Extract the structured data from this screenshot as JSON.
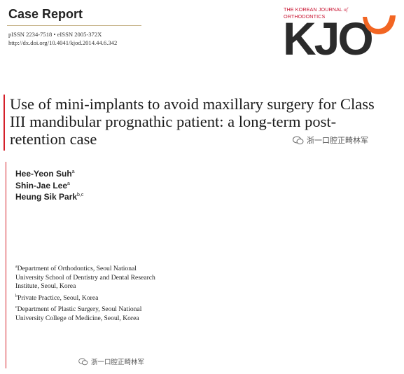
{
  "header": {
    "section_label": "Case Report",
    "issn": "pISSN 2234-7518 • eISSN 2005-372X",
    "doi": "http://dx.doi.org/10.4041/kjod.2014.44.6.342"
  },
  "journal": {
    "name_line1": "THE KOREAN JOURNAL",
    "name_of": "of",
    "name_line2": "ORTHODONTICS",
    "logo_text": "KJO",
    "logo_icon": "smile-swoosh-icon",
    "brand_color": "#c8102e",
    "accent_color": "#f26522"
  },
  "article": {
    "title": "Use of mini-implants to avoid maxillary surgery for Class III mandibular prognathic patient: a long-term post-retention case"
  },
  "authors": [
    {
      "name": "Hee-Yeon Suh",
      "sup": "a"
    },
    {
      "name": "Shin-Jae Lee",
      "sup": "a"
    },
    {
      "name": "Heung Sik Park",
      "sup": "b,c"
    }
  ],
  "affiliations": [
    {
      "sup": "a",
      "text": "Department of Orthodontics, Seoul National University School of Dentistry and Dental Research Institute, Seoul, Korea"
    },
    {
      "sup": "b",
      "text": "Private Practice, Seoul, Korea"
    },
    {
      "sup": "c",
      "text": "Department of Plastic Surgery, Seoul National University College of Medicine, Seoul, Korea"
    }
  ],
  "watermarks": [
    {
      "icon": "wechat-icon",
      "text": "浙一口腔正畸林军"
    },
    {
      "icon": "wechat-icon",
      "text": "浙一口腔正畸林军"
    }
  ]
}
